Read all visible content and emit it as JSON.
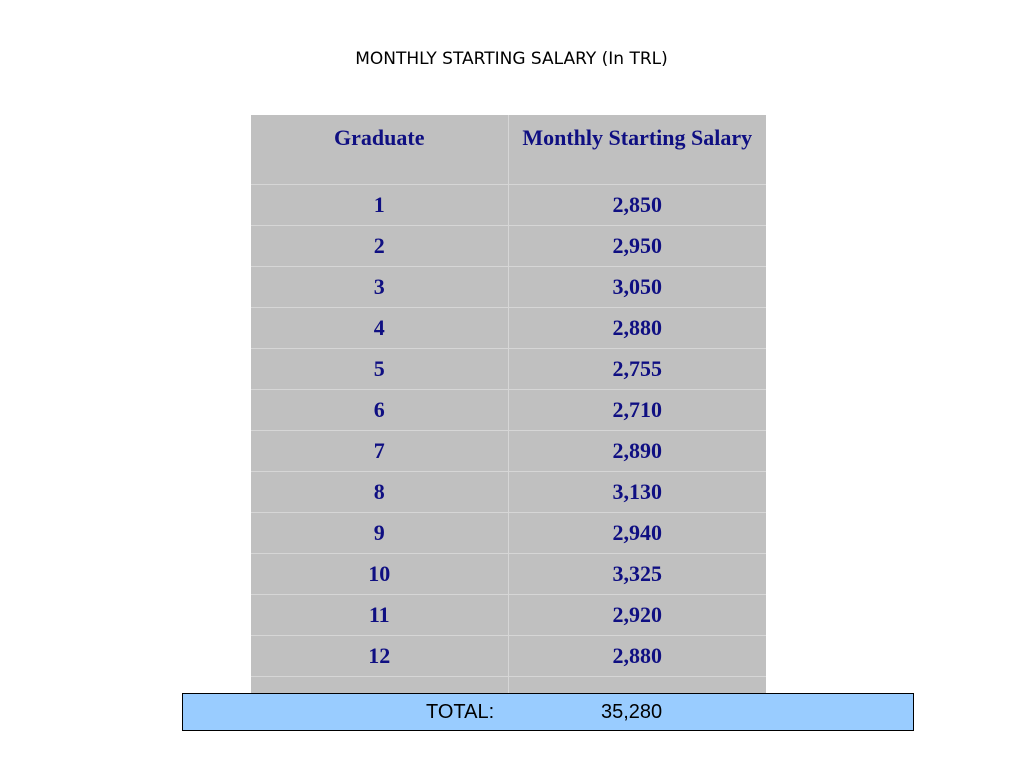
{
  "title": "MONTHLY STARTING SALARY (In TRL)",
  "table": {
    "headers": [
      "Graduate",
      "Monthly Starting Salary"
    ],
    "rows": [
      [
        "1",
        "2,850"
      ],
      [
        "2",
        "2,950"
      ],
      [
        "3",
        "3,050"
      ],
      [
        "4",
        "2,880"
      ],
      [
        "5",
        "2,755"
      ],
      [
        "6",
        "2,710"
      ],
      [
        "7",
        "2,890"
      ],
      [
        "8",
        "3,130"
      ],
      [
        "9",
        "2,940"
      ],
      [
        "10",
        "3,325"
      ],
      [
        "11",
        "2,920"
      ],
      [
        "12",
        "2,880"
      ]
    ]
  },
  "total": {
    "label": "TOTAL:",
    "value": "35,280"
  },
  "colors": {
    "table_background": "#c0c0c0",
    "table_text": "#0f0f82",
    "total_background": "#99ccff"
  }
}
